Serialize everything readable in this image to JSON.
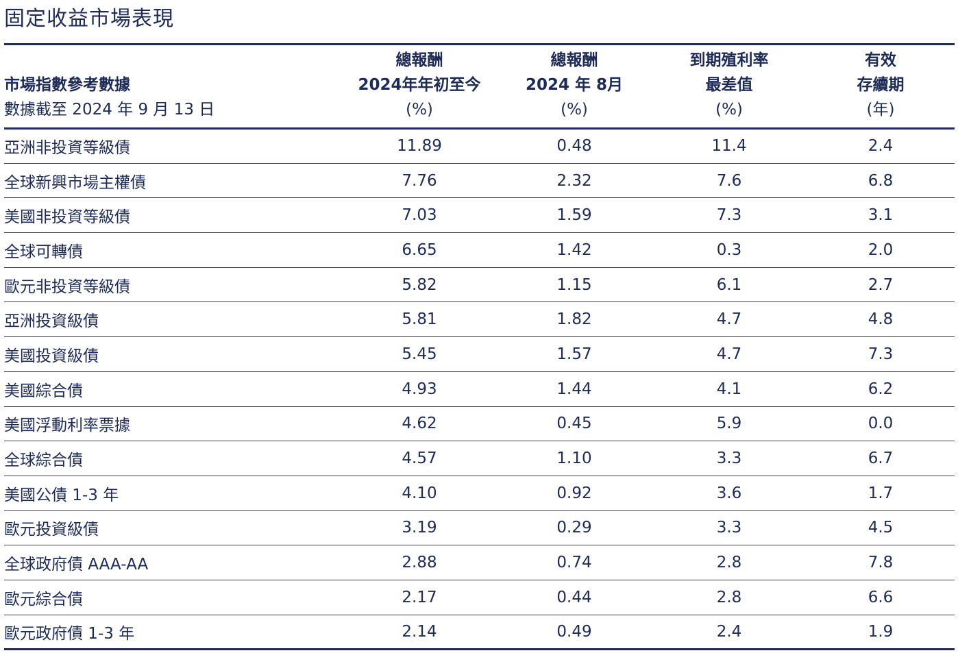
{
  "title": "固定收益市場表現",
  "header": {
    "col0": {
      "label": "市場指數參考數據",
      "as_of": "數據截至 2024 年 9 月 13 日"
    },
    "col1": {
      "line1": "總報酬",
      "line2": "2024年年初至今",
      "unit": "(%)"
    },
    "col2": {
      "line1": "總報酬",
      "line2": "2024 年 8月",
      "unit": "(%)"
    },
    "col3": {
      "line1": "到期殖利率",
      "line2": "最差值",
      "unit": "(%)"
    },
    "col4": {
      "line1": "有效",
      "line2": "存續期",
      "unit": "(年)"
    }
  },
  "rows": [
    {
      "name": "亞洲非投資等級債",
      "ytd": "11.89",
      "aug": "0.48",
      "ytw": "11.4",
      "dur": "2.4"
    },
    {
      "name": "全球新興市場主權債",
      "ytd": "7.76",
      "aug": "2.32",
      "ytw": "7.6",
      "dur": "6.8"
    },
    {
      "name": "美國非投資等級債",
      "ytd": "7.03",
      "aug": "1.59",
      "ytw": "7.3",
      "dur": "3.1"
    },
    {
      "name": "全球可轉債",
      "ytd": "6.65",
      "aug": "1.42",
      "ytw": "0.3",
      "dur": "2.0"
    },
    {
      "name": "歐元非投資等級債",
      "ytd": "5.82",
      "aug": "1.15",
      "ytw": "6.1",
      "dur": "2.7"
    },
    {
      "name": "亞洲投資級債",
      "ytd": "5.81",
      "aug": "1.82",
      "ytw": "4.7",
      "dur": "4.8"
    },
    {
      "name": "美國投資級債",
      "ytd": "5.45",
      "aug": "1.57",
      "ytw": "4.7",
      "dur": "7.3"
    },
    {
      "name": "美國綜合債",
      "ytd": "4.93",
      "aug": "1.44",
      "ytw": "4.1",
      "dur": "6.2"
    },
    {
      "name": "美國浮動利率票據",
      "ytd": "4.62",
      "aug": "0.45",
      "ytw": "5.9",
      "dur": "0.0"
    },
    {
      "name": "全球綜合債",
      "ytd": "4.57",
      "aug": "1.10",
      "ytw": "3.3",
      "dur": "6.7"
    },
    {
      "name": "美國公債 1-3 年",
      "ytd": "4.10",
      "aug": "0.92",
      "ytw": "3.6",
      "dur": "1.7"
    },
    {
      "name": "歐元投資級債",
      "ytd": "3.19",
      "aug": "0.29",
      "ytw": "3.3",
      "dur": "4.5"
    },
    {
      "name": "全球政府債 AAA-AA",
      "ytd": "2.88",
      "aug": "0.74",
      "ytw": "2.8",
      "dur": "7.8"
    },
    {
      "name": "歐元綜合債",
      "ytd": "2.17",
      "aug": "0.44",
      "ytw": "2.8",
      "dur": "6.6"
    },
    {
      "name": "歐元政府債 1-3 年",
      "ytd": "2.14",
      "aug": "0.49",
      "ytw": "2.4",
      "dur": "1.9"
    }
  ]
}
